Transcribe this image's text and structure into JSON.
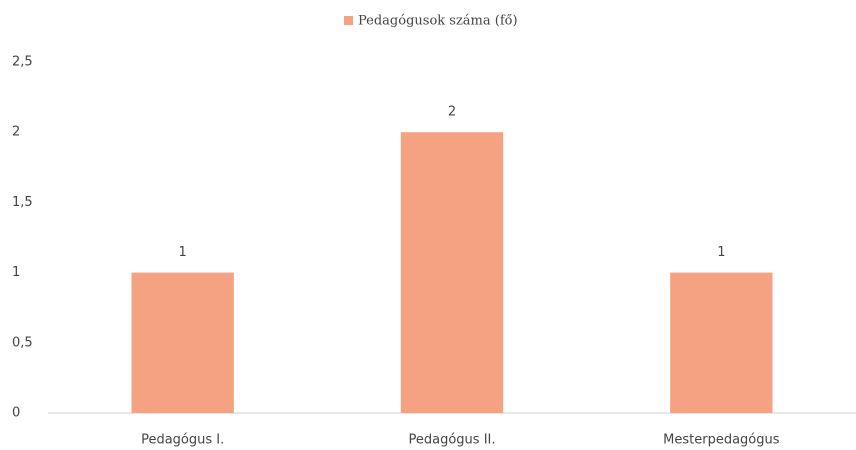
{
  "chart_data": {
    "type": "bar",
    "legend": "Pedagógusok száma (fő)",
    "categories": [
      "Pedagógus I.",
      "Pedagógus II.",
      "Mesterpedagógus"
    ],
    "values": [
      1,
      2,
      1
    ],
    "color": "#f4a282",
    "ylim": [
      0,
      2.5
    ],
    "yticks": [
      0,
      {
        "value": 0.5,
        "label": "0,5"
      },
      1,
      {
        "value": 1.5,
        "label": "1,5"
      },
      2,
      {
        "value": 2.5,
        "label": "2,5"
      }
    ],
    "grid": false,
    "legend_position": "top"
  }
}
